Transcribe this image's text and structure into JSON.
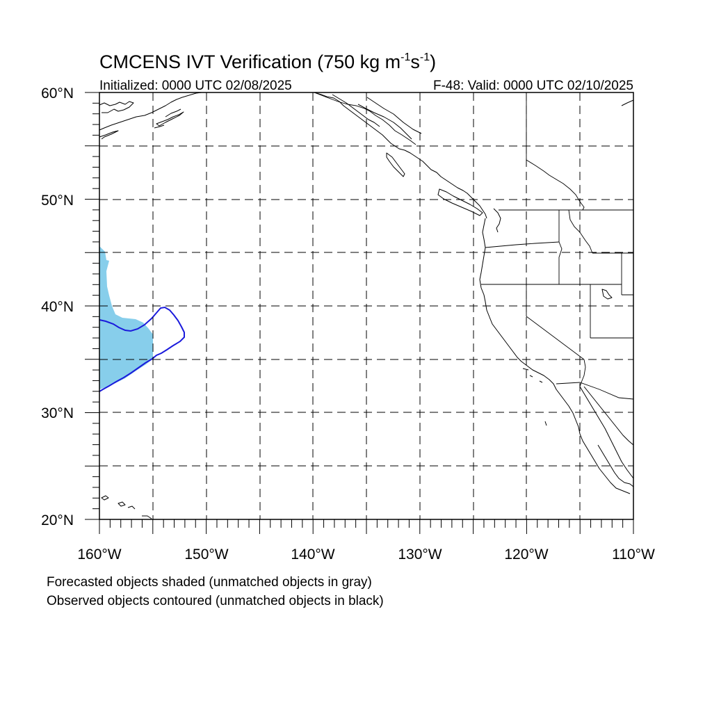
{
  "title": {
    "prefix": "CMCENS IVT Verification (750 kg m",
    "sup1": "-1",
    "mid": "s",
    "sup2": "-1",
    "suffix": ")"
  },
  "subtitle": {
    "left": "Initialized: 0000 UTC 02/08/2025",
    "right": "F-48: Valid: 0000 UTC 02/10/2025"
  },
  "map": {
    "lon_range": [
      -160,
      -110
    ],
    "lat_range": [
      20,
      60
    ],
    "lon_labels": [
      "160°W",
      "150°W",
      "140°W",
      "130°W",
      "120°W",
      "110°W"
    ],
    "lat_labels": [
      "60°N",
      "50°N",
      "40°N",
      "30°N",
      "20°N"
    ],
    "forecast_fill_color": "#87ceeb",
    "observed_contour_color": "#1a1adc"
  },
  "notes": {
    "line1": "Forecasted objects shaded (unmatched objects in gray)",
    "line2": "Observed objects contoured (unmatched objects in black)"
  }
}
